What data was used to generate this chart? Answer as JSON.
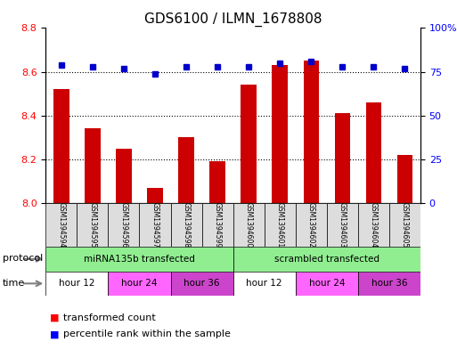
{
  "title": "GDS6100 / ILMN_1678808",
  "samples": [
    "GSM1394594",
    "GSM1394595",
    "GSM1394596",
    "GSM1394597",
    "GSM1394598",
    "GSM1394599",
    "GSM1394600",
    "GSM1394601",
    "GSM1394602",
    "GSM1394603",
    "GSM1394604",
    "GSM1394605"
  ],
  "red_values": [
    8.52,
    8.34,
    8.25,
    8.07,
    8.3,
    8.19,
    8.54,
    8.63,
    8.65,
    8.41,
    8.46,
    8.22
  ],
  "blue_values": [
    79,
    78,
    77,
    74,
    78,
    78,
    78,
    80,
    81,
    78,
    78,
    77
  ],
  "ylim_left": [
    8.0,
    8.8
  ],
  "ylim_right": [
    0,
    100
  ],
  "yticks_left": [
    8.0,
    8.2,
    8.4,
    8.6,
    8.8
  ],
  "yticks_right": [
    0,
    25,
    50,
    75,
    100
  ],
  "ytick_labels_right": [
    "0",
    "25",
    "50",
    "75",
    "100%"
  ],
  "bar_color": "#CC0000",
  "dot_color": "#0000CC",
  "bg_color": "#ffffff",
  "sample_bg_color": "#DDDDDD",
  "proto_color": "#90EE90",
  "time_colors": {
    "hour 12": "#ffffff",
    "hour 24": "#FF66FF",
    "hour 36": "#CC44CC"
  },
  "protocol_groups": [
    {
      "label": "miRNA135b transfected",
      "start": 0,
      "end": 6
    },
    {
      "label": "scrambled transfected",
      "start": 6,
      "end": 12
    }
  ],
  "time_groups": [
    {
      "label": "hour 12",
      "start": 0,
      "end": 2
    },
    {
      "label": "hour 24",
      "start": 2,
      "end": 4
    },
    {
      "label": "hour 36",
      "start": 4,
      "end": 6
    },
    {
      "label": "hour 12",
      "start": 6,
      "end": 8
    },
    {
      "label": "hour 24",
      "start": 8,
      "end": 10
    },
    {
      "label": "hour 36",
      "start": 10,
      "end": 12
    }
  ],
  "protocol_label": "protocol",
  "time_label": "time",
  "legend_red": "transformed count",
  "legend_blue": "percentile rank within the sample"
}
